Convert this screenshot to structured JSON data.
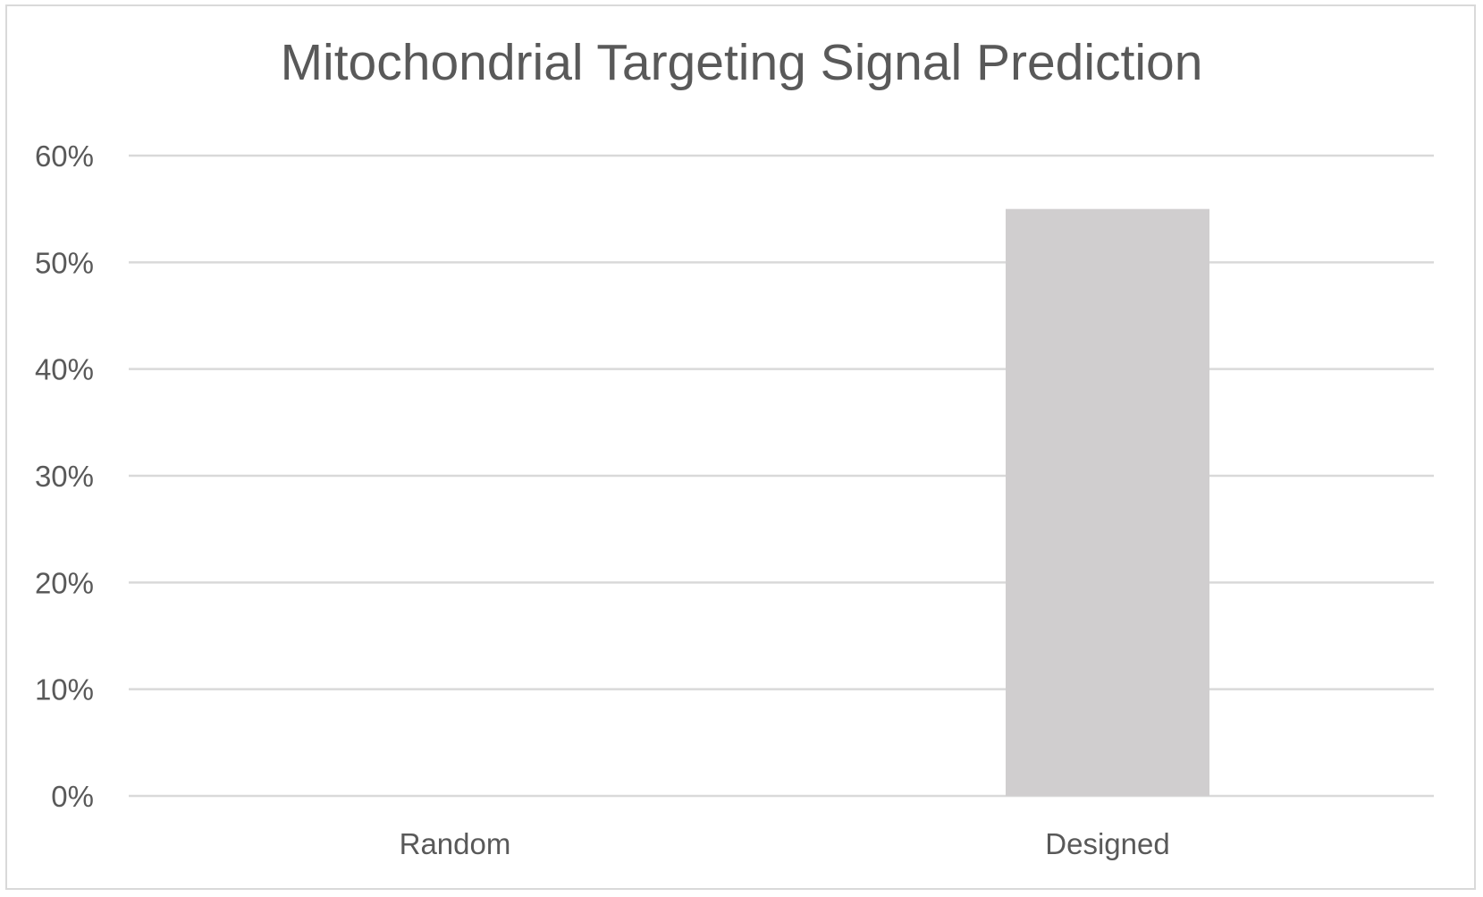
{
  "chart_data": {
    "type": "bar",
    "title": "Mitochondrial Targeting Signal Prediction",
    "categories": [
      "Random",
      "Designed"
    ],
    "values": [
      0,
      0.55
    ],
    "ylim": [
      0,
      0.6
    ],
    "yticks": [
      0,
      0.1,
      0.2,
      0.3,
      0.4,
      0.5,
      0.6
    ],
    "ytick_labels": [
      "0%",
      "10%",
      "20%",
      "30%",
      "40%",
      "50%",
      "60%"
    ],
    "grid": true,
    "legend": "none",
    "colors": {
      "bar": "#d0cecf",
      "grid": "#d9d9d9",
      "text": "#595959",
      "border": "#d9d9d9"
    }
  }
}
